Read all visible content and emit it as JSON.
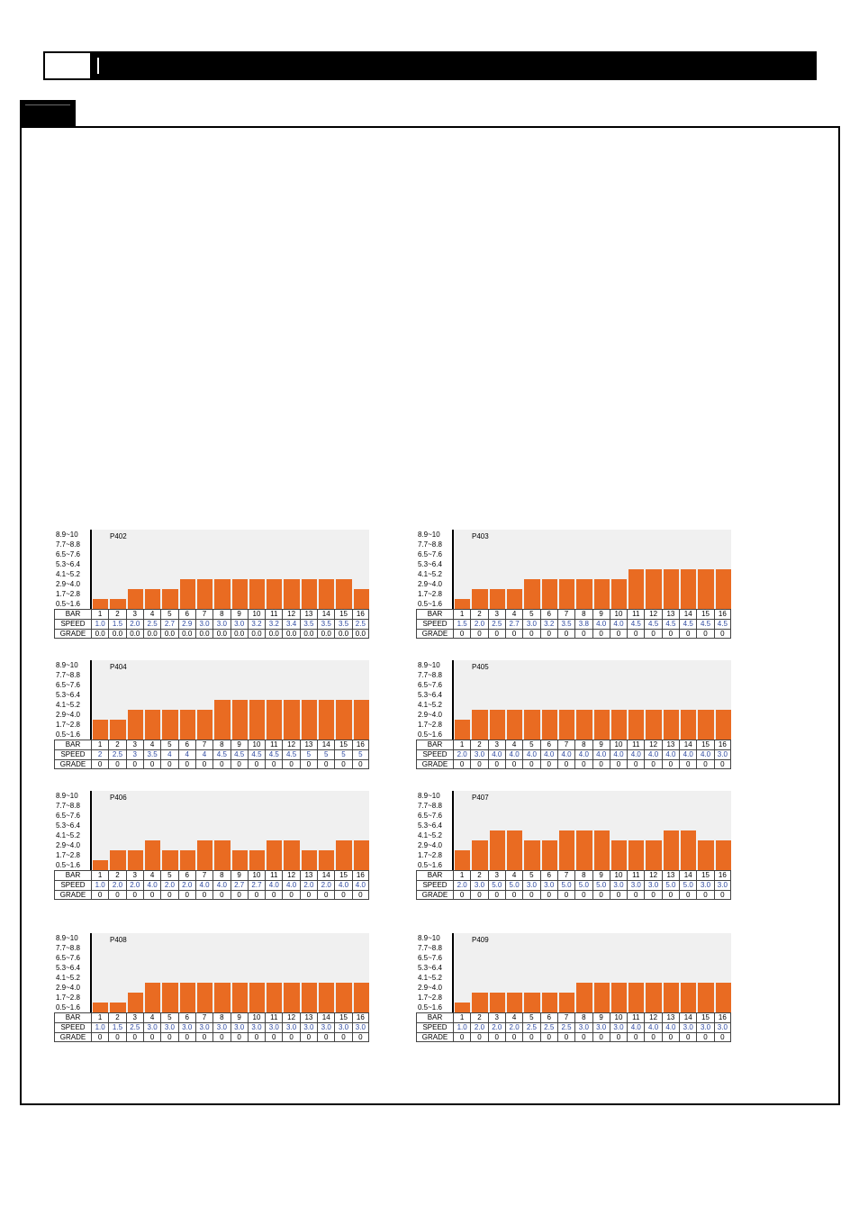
{
  "colors": {
    "bar": "#e96b22",
    "speed_text": "#2f4aa0",
    "plot_background": "#f0f0f0"
  },
  "chart_data": [
    {
      "type": "bar",
      "title": "P402",
      "y_tick_labels": [
        "8.9~10",
        "7.7~8.8",
        "6.5~7.6",
        "5.3~6.4",
        "4.1~5.2",
        "2.9~4.0",
        "1.7~2.8",
        "0.5~1.6"
      ],
      "categories": [
        "1",
        "2",
        "3",
        "4",
        "5",
        "6",
        "7",
        "8",
        "9",
        "10",
        "11",
        "12",
        "13",
        "14",
        "15",
        "16"
      ],
      "values": [
        1.0,
        1.5,
        2.0,
        2.5,
        2.7,
        2.9,
        3.0,
        3.0,
        3.0,
        3.2,
        3.2,
        3.4,
        3.5,
        3.5,
        3.5,
        2.5
      ],
      "table": {
        "row_labels": [
          "BAR",
          "SPEED",
          "GRADE"
        ],
        "speed": [
          "1.0",
          "1.5",
          "2.0",
          "2.5",
          "2.7",
          "2.9",
          "3.0",
          "3.0",
          "3.0",
          "3.2",
          "3.2",
          "3.4",
          "3.5",
          "3.5",
          "3.5",
          "2.5"
        ],
        "grade": [
          "0.0",
          "0.0",
          "0.0",
          "0.0",
          "0.0",
          "0.0",
          "0.0",
          "0.0",
          "0.0",
          "0.0",
          "0.0",
          "0.0",
          "0.0",
          "0.0",
          "0.0",
          "0.0"
        ]
      }
    },
    {
      "type": "bar",
      "title": "P403",
      "y_tick_labels": [
        "8.9~10",
        "7.7~8.8",
        "6.5~7.6",
        "5.3~6.4",
        "4.1~5.2",
        "2.9~4.0",
        "1.7~2.8",
        "0.5~1.6"
      ],
      "categories": [
        "1",
        "2",
        "3",
        "4",
        "5",
        "6",
        "7",
        "8",
        "9",
        "10",
        "11",
        "12",
        "13",
        "14",
        "15",
        "16"
      ],
      "values": [
        1.5,
        2.0,
        2.5,
        2.7,
        3.0,
        3.2,
        3.5,
        3.8,
        4.0,
        4.0,
        4.5,
        4.5,
        4.5,
        4.5,
        4.5,
        4.5
      ],
      "table": {
        "row_labels": [
          "BAR",
          "SPEED",
          "GRADE"
        ],
        "speed": [
          "1.5",
          "2.0",
          "2.5",
          "2.7",
          "3.0",
          "3.2",
          "3.5",
          "3.8",
          "4.0",
          "4.0",
          "4.5",
          "4.5",
          "4.5",
          "4.5",
          "4.5",
          "4.5"
        ],
        "grade": [
          "0",
          "0",
          "0",
          "0",
          "0",
          "0",
          "0",
          "0",
          "0",
          "0",
          "0",
          "0",
          "0",
          "0",
          "0",
          "0"
        ]
      }
    },
    {
      "type": "bar",
      "title": "P404",
      "y_tick_labels": [
        "8.9~10",
        "7.7~8.8",
        "6.5~7.6",
        "5.3~6.4",
        "4.1~5.2",
        "2.9~4.0",
        "1.7~2.8",
        "0.5~1.6"
      ],
      "categories": [
        "1",
        "2",
        "3",
        "4",
        "5",
        "6",
        "7",
        "8",
        "9",
        "10",
        "11",
        "12",
        "13",
        "14",
        "15",
        "16"
      ],
      "values": [
        2,
        2.5,
        3,
        3.5,
        4,
        4,
        4,
        4.5,
        4.5,
        4.5,
        4.5,
        4.5,
        5,
        5,
        5,
        5
      ],
      "table": {
        "row_labels": [
          "BAR",
          "SPEED",
          "GRADE"
        ],
        "speed": [
          "2",
          "2.5",
          "3",
          "3.5",
          "4",
          "4",
          "4",
          "4.5",
          "4.5",
          "4.5",
          "4.5",
          "4.5",
          "5",
          "5",
          "5",
          "5"
        ],
        "grade": [
          "0",
          "0",
          "0",
          "0",
          "0",
          "0",
          "0",
          "0",
          "0",
          "0",
          "0",
          "0",
          "0",
          "0",
          "0",
          "0"
        ]
      }
    },
    {
      "type": "bar",
      "title": "P405",
      "y_tick_labels": [
        "8.9~10",
        "7.7~8.8",
        "6.5~7.6",
        "5.3~6.4",
        "4.1~5.2",
        "2.9~4.0",
        "1.7~2.8",
        "0.5~1.6"
      ],
      "categories": [
        "1",
        "2",
        "3",
        "4",
        "5",
        "6",
        "7",
        "8",
        "9",
        "10",
        "11",
        "12",
        "13",
        "14",
        "15",
        "16"
      ],
      "values": [
        2.0,
        3.0,
        4.0,
        4.0,
        4.0,
        4.0,
        4.0,
        4.0,
        4.0,
        4.0,
        4.0,
        4.0,
        4.0,
        4.0,
        4.0,
        3.0
      ],
      "table": {
        "row_labels": [
          "BAR",
          "SPEED",
          "GRADE"
        ],
        "speed": [
          "2.0",
          "3.0",
          "4.0",
          "4.0",
          "4.0",
          "4.0",
          "4.0",
          "4.0",
          "4.0",
          "4.0",
          "4.0",
          "4.0",
          "4.0",
          "4.0",
          "4.0",
          "3.0"
        ],
        "grade": [
          "0",
          "0",
          "0",
          "0",
          "0",
          "0",
          "0",
          "0",
          "0",
          "0",
          "0",
          "0",
          "0",
          "0",
          "0",
          "0"
        ]
      }
    },
    {
      "type": "bar",
      "title": "P406",
      "y_tick_labels": [
        "8.9~10",
        "7.7~8.8",
        "6.5~7.6",
        "5.3~6.4",
        "4.1~5.2",
        "2.9~4.0",
        "1.7~2.8",
        "0.5~1.6"
      ],
      "categories": [
        "1",
        "2",
        "3",
        "4",
        "5",
        "6",
        "7",
        "8",
        "9",
        "10",
        "11",
        "12",
        "13",
        "14",
        "15",
        "16"
      ],
      "values": [
        1.0,
        2.0,
        2.0,
        4.0,
        2.0,
        2.0,
        4.0,
        4.0,
        2.7,
        2.7,
        4.0,
        4.0,
        2.0,
        2.0,
        4.0,
        4.0
      ],
      "table": {
        "row_labels": [
          "BAR",
          "SPEED",
          "GRADE"
        ],
        "speed": [
          "1.0",
          "2.0",
          "2.0",
          "4.0",
          "2.0",
          "2.0",
          "4.0",
          "4.0",
          "2.7",
          "2.7",
          "4.0",
          "4.0",
          "2.0",
          "2.0",
          "4.0",
          "4.0"
        ],
        "grade": [
          "0",
          "0",
          "0",
          "0",
          "0",
          "0",
          "0",
          "0",
          "0",
          "0",
          "0",
          "0",
          "0",
          "0",
          "0",
          "0"
        ]
      }
    },
    {
      "type": "bar",
      "title": "P407",
      "y_tick_labels": [
        "8.9~10",
        "7.7~8.8",
        "6.5~7.6",
        "5.3~6.4",
        "4.1~5.2",
        "2.9~4.0",
        "1.7~2.8",
        "0.5~1.6"
      ],
      "categories": [
        "1",
        "2",
        "3",
        "4",
        "5",
        "6",
        "7",
        "8",
        "9",
        "10",
        "11",
        "12",
        "13",
        "14",
        "15",
        "16"
      ],
      "values": [
        2.0,
        3.0,
        5.0,
        5.0,
        3.0,
        3.0,
        5.0,
        5.0,
        5.0,
        3.0,
        3.0,
        3.0,
        5.0,
        5.0,
        3.0,
        3.0
      ],
      "table": {
        "row_labels": [
          "BAR",
          "SPEED",
          "GRADE"
        ],
        "speed": [
          "2.0",
          "3.0",
          "5.0",
          "5.0",
          "3.0",
          "3.0",
          "5.0",
          "5.0",
          "5.0",
          "3.0",
          "3.0",
          "3.0",
          "5.0",
          "5.0",
          "3.0",
          "3.0"
        ],
        "grade": [
          "0",
          "0",
          "0",
          "0",
          "0",
          "0",
          "0",
          "0",
          "0",
          "0",
          "0",
          "0",
          "0",
          "0",
          "0",
          "0"
        ]
      }
    },
    {
      "type": "bar",
      "title": "P408",
      "y_tick_labels": [
        "8.9~10",
        "7.7~8.8",
        "6.5~7.6",
        "5.3~6.4",
        "4.1~5.2",
        "2.9~4.0",
        "1.7~2.8",
        "0.5~1.6"
      ],
      "categories": [
        "1",
        "2",
        "3",
        "4",
        "5",
        "6",
        "7",
        "8",
        "9",
        "10",
        "11",
        "12",
        "13",
        "14",
        "15",
        "16"
      ],
      "values": [
        1.0,
        1.5,
        2.5,
        3.0,
        3.0,
        3.0,
        3.0,
        3.0,
        3.0,
        3.0,
        3.0,
        3.0,
        3.0,
        3.0,
        3.0,
        3.0
      ],
      "table": {
        "row_labels": [
          "BAR",
          "SPEED",
          "GRADE"
        ],
        "speed": [
          "1.0",
          "1.5",
          "2.5",
          "3.0",
          "3.0",
          "3.0",
          "3.0",
          "3.0",
          "3.0",
          "3.0",
          "3.0",
          "3.0",
          "3.0",
          "3.0",
          "3.0",
          "3.0"
        ],
        "grade": [
          "0",
          "0",
          "0",
          "0",
          "0",
          "0",
          "0",
          "0",
          "0",
          "0",
          "0",
          "0",
          "0",
          "0",
          "0",
          "0"
        ]
      }
    },
    {
      "type": "bar",
      "title": "P409",
      "y_tick_labels": [
        "8.9~10",
        "7.7~8.8",
        "6.5~7.6",
        "5.3~6.4",
        "4.1~5.2",
        "2.9~4.0",
        "1.7~2.8",
        "0.5~1.6"
      ],
      "categories": [
        "1",
        "2",
        "3",
        "4",
        "5",
        "6",
        "7",
        "8",
        "9",
        "10",
        "11",
        "12",
        "13",
        "14",
        "15",
        "16"
      ],
      "values": [
        1.0,
        2.0,
        2.0,
        2.0,
        2.5,
        2.5,
        2.5,
        3.0,
        3.0,
        3.0,
        4.0,
        4.0,
        4.0,
        3.0,
        3.0,
        3.0
      ],
      "table": {
        "row_labels": [
          "BAR",
          "SPEED",
          "GRADE"
        ],
        "speed": [
          "1.0",
          "2.0",
          "2.0",
          "2.0",
          "2.5",
          "2.5",
          "2.5",
          "3.0",
          "3.0",
          "3.0",
          "4.0",
          "4.0",
          "4.0",
          "3.0",
          "3.0",
          "3.0"
        ],
        "grade": [
          "0",
          "0",
          "0",
          "0",
          "0",
          "0",
          "0",
          "0",
          "0",
          "0",
          "0",
          "0",
          "0",
          "0",
          "0",
          "0"
        ]
      }
    }
  ]
}
